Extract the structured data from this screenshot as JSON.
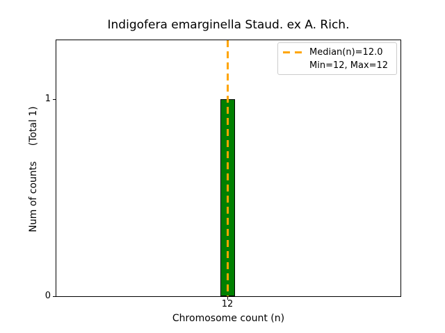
{
  "chart_data": {
    "type": "bar",
    "title": "Indigofera emarginella Staud. ex A. Rich.",
    "xlabel": "Chromosome count (n)",
    "ylabel": "Num of counts     (Total 1)",
    "categories": [
      12
    ],
    "values": [
      1
    ],
    "total_counts": 1,
    "x_tick_labels": [
      "12"
    ],
    "y_tick_labels": [
      "0",
      "1"
    ],
    "ylim": [
      0,
      1.3
    ],
    "grid": false,
    "bar_color": "#008000",
    "bar_edge_color": "#000000",
    "median_line": {
      "x": 12,
      "median": 12.0,
      "min": 12,
      "max": 12,
      "color": "#FFA500",
      "style": "dashed",
      "orientation": "vertical"
    },
    "legend": {
      "position": "upper right",
      "entries": [
        {
          "label": "Median(n)=12.0",
          "sample": "orange-dashed-line",
          "color": "#FFA500"
        },
        {
          "label": "Min=12, Max=12",
          "sample": "none"
        }
      ]
    }
  }
}
